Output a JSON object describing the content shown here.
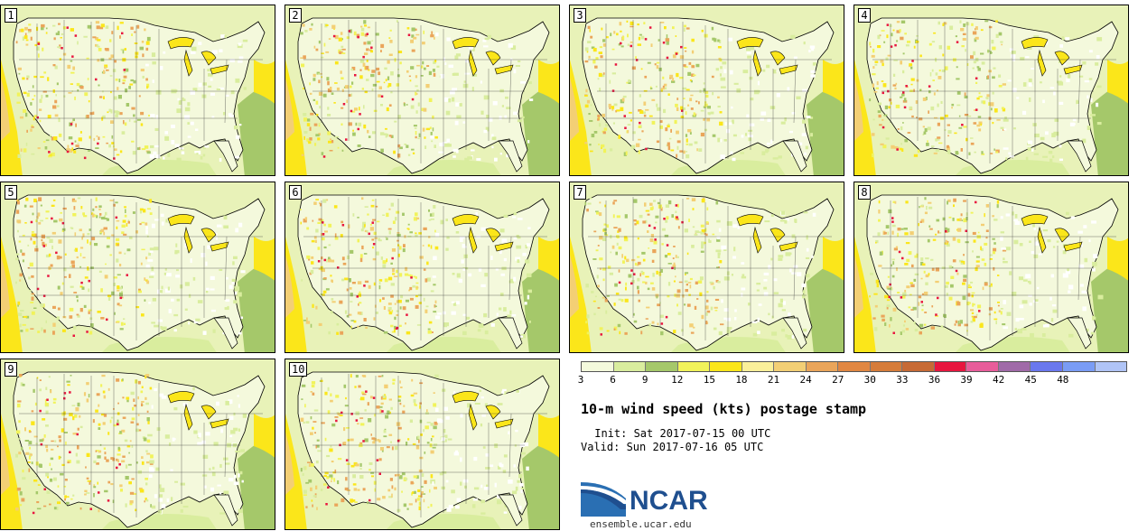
{
  "stamps": [
    {
      "label": "1"
    },
    {
      "label": "2"
    },
    {
      "label": "3"
    },
    {
      "label": "4"
    },
    {
      "label": "5"
    },
    {
      "label": "6"
    },
    {
      "label": "7"
    },
    {
      "label": "8"
    },
    {
      "label": "9"
    },
    {
      "label": "10"
    }
  ],
  "colorbar": {
    "ticks": [
      "3",
      "6",
      "9",
      "12",
      "15",
      "18",
      "21",
      "24",
      "27",
      "30",
      "33",
      "36",
      "39",
      "42",
      "45",
      "48"
    ],
    "colors": [
      "#f4f9dc",
      "#d9ed9e",
      "#a5c86a",
      "#f1f35a",
      "#fbe61a",
      "#faf09a",
      "#f3cf75",
      "#eaa55a",
      "#e18742",
      "#d67c3a",
      "#c76a35",
      "#e8163f",
      "#e85d9a",
      "#a06aa8",
      "#6a78ee",
      "#7a9cf5",
      "#b0c4f6"
    ]
  },
  "title": "10-m wind speed (kts) postage stamp",
  "init_line": " Init: Sat 2017-07-15 00 UTC",
  "valid_line": "Valid: Sun 2017-07-16 05 UTC",
  "logo": {
    "text": "NCAR",
    "url": "ensemble.ucar.edu"
  }
}
